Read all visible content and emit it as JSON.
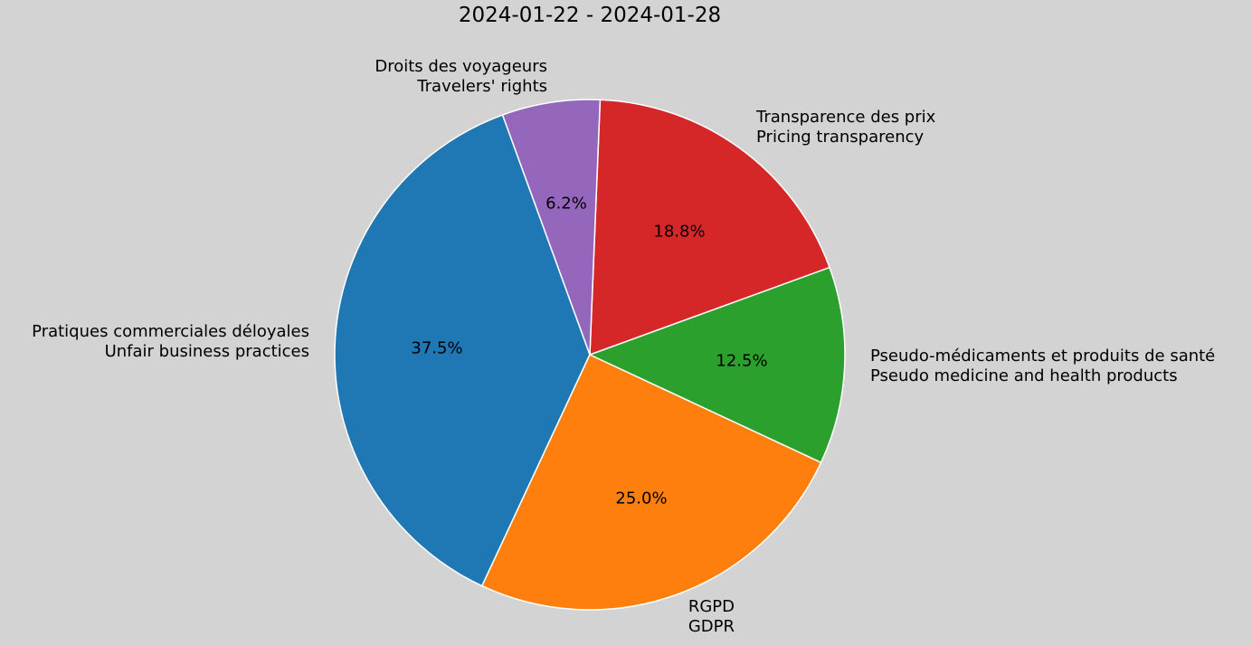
{
  "chart_data": {
    "type": "pie",
    "title": "2024-01-22 - 2024-01-28",
    "start_angle_deg": 110,
    "counterclock": true,
    "slices": [
      {
        "label_fr": "Pratiques commerciales déloyales",
        "label_en": "Unfair business practices",
        "value": 37.5,
        "pct_label": "37.5%",
        "color": "#1f77b4"
      },
      {
        "label_fr": "RGPD",
        "label_en": "GDPR",
        "value": 25.0,
        "pct_label": "25.0%",
        "color": "#ff7f0e"
      },
      {
        "label_fr": "Pseudo-médicaments et produits de santé",
        "label_en": "Pseudo medicine and health products",
        "value": 12.5,
        "pct_label": "12.5%",
        "color": "#2ca02c"
      },
      {
        "label_fr": "Transparence des prix",
        "label_en": "Pricing transparency",
        "value": 18.8,
        "pct_label": "18.8%",
        "color": "#d62728"
      },
      {
        "label_fr": "Droits des voyageurs",
        "label_en": "Travelers' rights",
        "value": 6.2,
        "pct_label": "6.2%",
        "color": "#9467bd"
      }
    ]
  }
}
